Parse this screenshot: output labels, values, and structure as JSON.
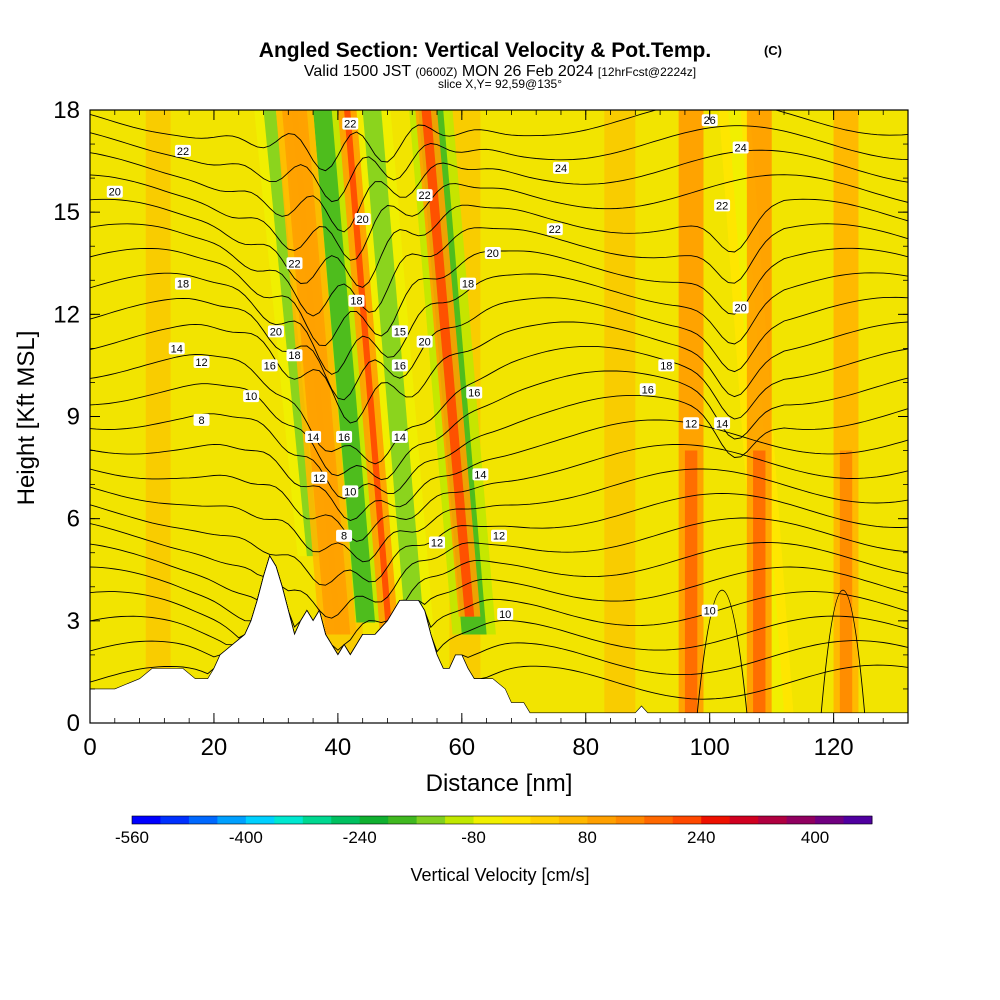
{
  "chart_data": {
    "type": "heatmap",
    "title": "Angled Section: Vertical Velocity & Pot.Temp.",
    "title_units": "(C)",
    "subtitle_prefix": "Valid 1500 JST",
    "subtitle_z": "(0600Z)",
    "subtitle_date": "MON 26 Feb 2024",
    "subtitle_fcst": "[12hrFcst@2224z]",
    "slice_label": "slice X,Y= 92,59@135°",
    "xlabel": "Distance [nm]",
    "ylabel": "Height [Kft MSL]",
    "xlim": [
      0,
      132
    ],
    "ylim": [
      0,
      18
    ],
    "x_ticks": [
      "0",
      "20",
      "40",
      "60",
      "80",
      "100",
      "120"
    ],
    "y_ticks": [
      "0",
      "3",
      "6",
      "9",
      "12",
      "15",
      "18"
    ],
    "colorbar": {
      "label": "Vertical Velocity [cm/s]",
      "tick_labels": [
        "-560",
        "-400",
        "-240",
        "-80",
        "80",
        "240",
        "400"
      ],
      "colors": [
        "#0000ff",
        "#0030ff",
        "#0068ff",
        "#00a0ff",
        "#00d0ff",
        "#00e8d0",
        "#00d890",
        "#00c060",
        "#10b030",
        "#40b820",
        "#80d020",
        "#c0e800",
        "#f0f000",
        "#ffe600",
        "#ffd000",
        "#ffb800",
        "#ffa000",
        "#ff8800",
        "#ff6800",
        "#ff4800",
        "#ee1000",
        "#d00020",
        "#b00040",
        "#900060",
        "#700080",
        "#5000a0"
      ]
    },
    "background_color": "#f2e400",
    "terrain_profile": [
      [
        0,
        1
      ],
      [
        4,
        1
      ],
      [
        8,
        1.3
      ],
      [
        10,
        1.6
      ],
      [
        15,
        1.6
      ],
      [
        17,
        1.3
      ],
      [
        19,
        1.3
      ],
      [
        20,
        1.6
      ],
      [
        21,
        2
      ],
      [
        23,
        2.3
      ],
      [
        25,
        2.6
      ],
      [
        26,
        3
      ],
      [
        27,
        3.6
      ],
      [
        28,
        4.3
      ],
      [
        29,
        4.9
      ],
      [
        30,
        4.6
      ],
      [
        31,
        4
      ],
      [
        32,
        3.3
      ],
      [
        33,
        2.6
      ],
      [
        34,
        3
      ],
      [
        35,
        3.3
      ],
      [
        36,
        3
      ],
      [
        37,
        3.3
      ],
      [
        38,
        2.6
      ],
      [
        39,
        2.3
      ],
      [
        40,
        2
      ],
      [
        41,
        2.3
      ],
      [
        42,
        2
      ],
      [
        43,
        2.3
      ],
      [
        44,
        2.6
      ],
      [
        46,
        2.6
      ],
      [
        48,
        3
      ],
      [
        50,
        3.6
      ],
      [
        53,
        3.6
      ],
      [
        54,
        3.3
      ],
      [
        55,
        2.6
      ],
      [
        56,
        2
      ],
      [
        57,
        1.6
      ],
      [
        58,
        1.6
      ],
      [
        59,
        2
      ],
      [
        60,
        2
      ],
      [
        61,
        1.6
      ],
      [
        62,
        1.3
      ],
      [
        65,
        1.3
      ],
      [
        67,
        1
      ],
      [
        68,
        0.6
      ],
      [
        70,
        0.6
      ],
      [
        71,
        0.3
      ],
      [
        88,
        0.3
      ],
      [
        89,
        0.5
      ],
      [
        90,
        0.3
      ],
      [
        132,
        0.3
      ]
    ],
    "updraft_bands": [
      {
        "x0": 32.5,
        "x1": 33.5,
        "w": 240,
        "peak": "red"
      },
      {
        "x0": 31,
        "x1": 35,
        "w": 80,
        "peak": "orange"
      },
      {
        "x0": 41,
        "x1": 42,
        "w": 200,
        "peak": "red"
      },
      {
        "x0": 53.5,
        "x1": 55,
        "w": 200,
        "peak": "red"
      },
      {
        "x0": 96,
        "x1": 98,
        "w": 160,
        "peak": "orange"
      },
      {
        "x0": 107,
        "x1": 109,
        "w": 160,
        "peak": "orange"
      },
      {
        "x0": 121,
        "x1": 123,
        "w": 120,
        "peak": "orange"
      }
    ],
    "downdraft_bands": [
      {
        "x0": 28,
        "x1": 30,
        "w": -160
      },
      {
        "x0": 36,
        "x1": 39,
        "w": -200
      },
      {
        "x0": 44,
        "x1": 47,
        "w": -160
      },
      {
        "x0": 53,
        "x1": 57,
        "w": -200
      },
      {
        "x0": 103,
        "x1": 105,
        "w": -80
      }
    ],
    "isotherm_labels": [
      {
        "t": "22",
        "x": 42,
        "y": 17.6
      },
      {
        "t": "22",
        "x": 15,
        "y": 16.8
      },
      {
        "t": "20",
        "x": 4,
        "y": 15.6
      },
      {
        "t": "26",
        "x": 100,
        "y": 17.7
      },
      {
        "t": "24",
        "x": 105,
        "y": 16.9
      },
      {
        "t": "24",
        "x": 76,
        "y": 16.3
      },
      {
        "t": "22",
        "x": 54,
        "y": 15.5
      },
      {
        "t": "20",
        "x": 44,
        "y": 14.8
      },
      {
        "t": "22",
        "x": 75,
        "y": 14.5
      },
      {
        "t": "22",
        "x": 102,
        "y": 15.2
      },
      {
        "t": "20",
        "x": 65,
        "y": 13.8
      },
      {
        "t": "22",
        "x": 33,
        "y": 13.5
      },
      {
        "t": "18",
        "x": 15,
        "y": 12.9
      },
      {
        "t": "18",
        "x": 61,
        "y": 12.9
      },
      {
        "t": "18",
        "x": 43,
        "y": 12.4
      },
      {
        "t": "20",
        "x": 105,
        "y": 12.2
      },
      {
        "t": "20",
        "x": 30,
        "y": 11.5
      },
      {
        "t": "15",
        "x": 50,
        "y": 11.5
      },
      {
        "t": "20",
        "x": 54,
        "y": 11.2
      },
      {
        "t": "14",
        "x": 14,
        "y": 11
      },
      {
        "t": "18",
        "x": 33,
        "y": 10.8
      },
      {
        "t": "12",
        "x": 18,
        "y": 10.6
      },
      {
        "t": "16",
        "x": 29,
        "y": 10.5
      },
      {
        "t": "16",
        "x": 50,
        "y": 10.5
      },
      {
        "t": "18",
        "x": 93,
        "y": 10.5
      },
      {
        "t": "10",
        "x": 26,
        "y": 9.6
      },
      {
        "t": "16",
        "x": 62,
        "y": 9.7
      },
      {
        "t": "16",
        "x": 90,
        "y": 9.8
      },
      {
        "t": "8",
        "x": 18,
        "y": 8.9
      },
      {
        "t": "12",
        "x": 97,
        "y": 8.8
      },
      {
        "t": "14",
        "x": 102,
        "y": 8.8
      },
      {
        "t": "14",
        "x": 36,
        "y": 8.4
      },
      {
        "t": "16",
        "x": 41,
        "y": 8.4
      },
      {
        "t": "14",
        "x": 50,
        "y": 8.4
      },
      {
        "t": "14",
        "x": 63,
        "y": 7.3
      },
      {
        "t": "12",
        "x": 37,
        "y": 7.2
      },
      {
        "t": "10",
        "x": 42,
        "y": 6.8
      },
      {
        "t": "8",
        "x": 41,
        "y": 5.5
      },
      {
        "t": "12",
        "x": 56,
        "y": 5.3
      },
      {
        "t": "12",
        "x": 66,
        "y": 5.5
      },
      {
        "t": "10",
        "x": 67,
        "y": 3.2
      },
      {
        "t": "10",
        "x": 100,
        "y": 3.3
      }
    ]
  }
}
